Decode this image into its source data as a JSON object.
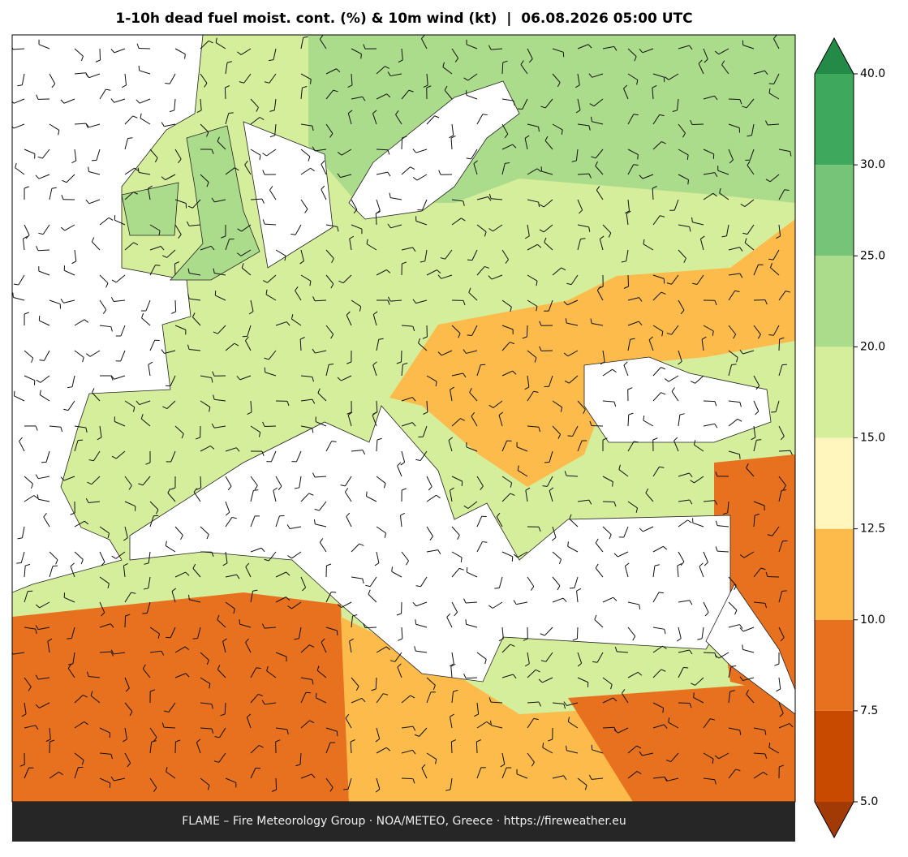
{
  "title": "1-10h dead fuel moist. cont. (%) & 10m wind (kt)  |  06.08.2026 05:00 UTC",
  "footer": "FLAME – Fire Meteorology Group · NOA/METEO, Greece · https://fireweather.eu",
  "colorbar": {
    "ticks": [
      {
        "value": 5,
        "label": "5.0"
      },
      {
        "value": 7.5,
        "label": "7.5"
      },
      {
        "value": 10,
        "label": "10.0"
      },
      {
        "value": 12.5,
        "label": "12.5"
      },
      {
        "value": 15,
        "label": "15.0"
      },
      {
        "value": 20,
        "label": "20.0"
      },
      {
        "value": 25,
        "label": "25.0"
      },
      {
        "value": 30,
        "label": "30.0"
      },
      {
        "value": 40,
        "label": "40.0"
      }
    ],
    "colors": [
      "#c84a00",
      "#e8711f",
      "#fdbb4b",
      "#fff6bd",
      "#d5ee9b",
      "#abdc8b",
      "#75c477",
      "#3ea95c"
    ],
    "under_color": "#a23a05",
    "over_color": "#238a47"
  }
}
